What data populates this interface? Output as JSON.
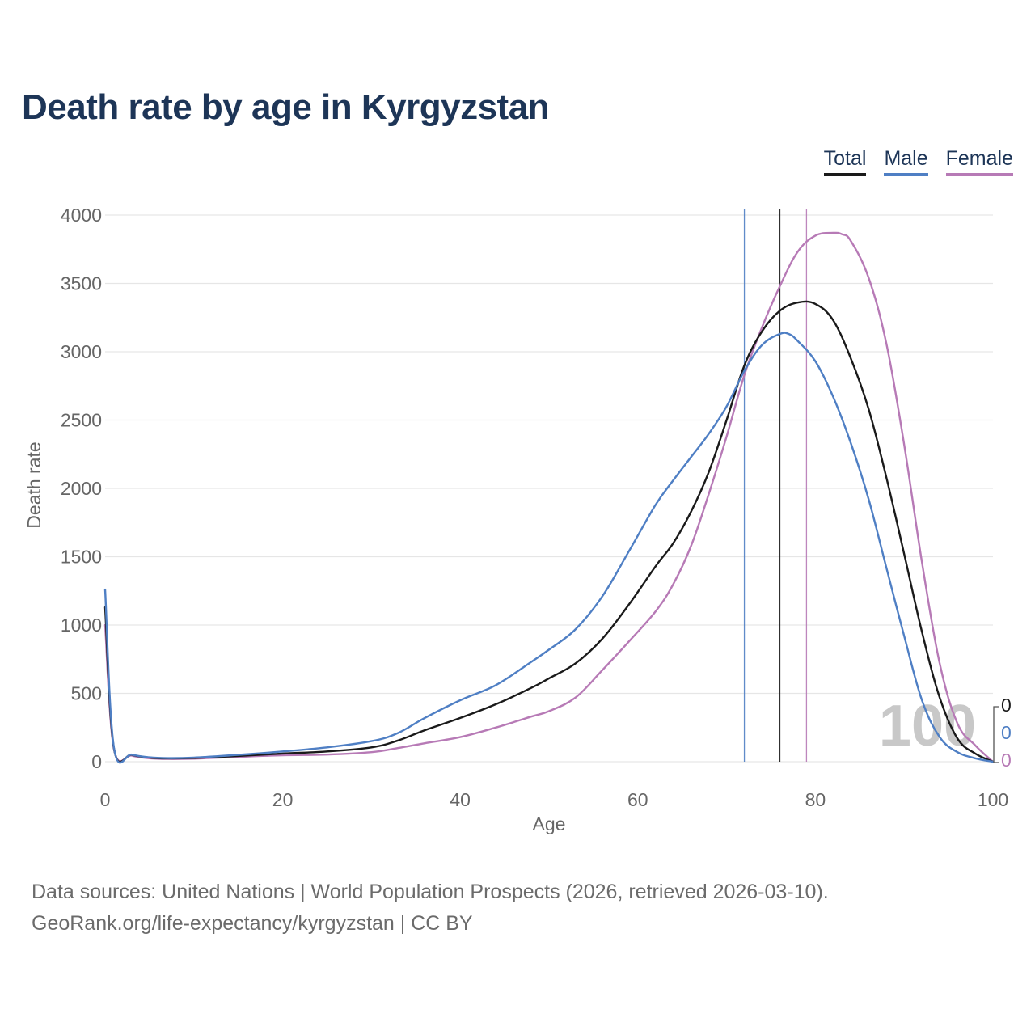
{
  "title": "Death rate by age in Kyrgyzstan",
  "legend": [
    {
      "label": "Total",
      "color": "#1a1a1a"
    },
    {
      "label": "Male",
      "color": "#4f7fc4"
    },
    {
      "label": "Female",
      "color": "#b77ab6"
    }
  ],
  "footer": {
    "line1": "Data sources: United Nations | World Population Prospects (2026, retrieved 2026-03-10).",
    "line2": "GeoRank.org/life-expectancy/kyrgyzstan | CC BY"
  },
  "chart_data": {
    "type": "line",
    "title": "Death rate by age in Kyrgyzstan",
    "xlabel": "Age",
    "ylabel": "Death rate",
    "xlim": [
      0,
      100
    ],
    "ylim": [
      0,
      4000
    ],
    "x_ticks": [
      "0",
      "20",
      "40",
      "60",
      "80",
      "100"
    ],
    "y_ticks": [
      "0",
      "500",
      "1000",
      "1500",
      "2000",
      "2500",
      "3000",
      "3500",
      "4000"
    ],
    "slider_label": "100",
    "end_values": [
      "0",
      "0",
      "0"
    ],
    "life_expectancy_markers": [
      {
        "series": "Male",
        "age": 72
      },
      {
        "series": "Total",
        "age": 76
      },
      {
        "series": "Female",
        "age": 79
      }
    ],
    "series": [
      {
        "name": "Total",
        "color": "#1a1a1a",
        "x": [
          0,
          1,
          3,
          5,
          7,
          10,
          15,
          20,
          25,
          30,
          33,
          36,
          40,
          44,
          48,
          50,
          53,
          56,
          59,
          62,
          64,
          66,
          68,
          70,
          72,
          74,
          76,
          78,
          80,
          82,
          84,
          86,
          88,
          90,
          92,
          94,
          96,
          98,
          100
        ],
        "y": [
          1130,
          95,
          50,
          30,
          24,
          27,
          42,
          60,
          75,
          105,
          155,
          230,
          320,
          420,
          540,
          610,
          720,
          900,
          1150,
          1430,
          1600,
          1830,
          2120,
          2500,
          2900,
          3150,
          3300,
          3360,
          3350,
          3230,
          2950,
          2580,
          2080,
          1520,
          950,
          470,
          170,
          60,
          0
        ]
      },
      {
        "name": "Male",
        "color": "#4f7fc4",
        "x": [
          0,
          1,
          3,
          5,
          7,
          10,
          15,
          20,
          25,
          30,
          33,
          36,
          40,
          44,
          48,
          50,
          53,
          56,
          59,
          62,
          64,
          66,
          68,
          70,
          72,
          74,
          76,
          77,
          78,
          80,
          82,
          84,
          86,
          88,
          90,
          92,
          94,
          96,
          98,
          100
        ],
        "y": [
          1260,
          100,
          52,
          32,
          26,
          30,
          50,
          75,
          105,
          150,
          210,
          320,
          450,
          560,
          730,
          820,
          970,
          1210,
          1540,
          1880,
          2060,
          2230,
          2400,
          2600,
          2860,
          3050,
          3130,
          3130,
          3080,
          2930,
          2670,
          2330,
          1920,
          1420,
          920,
          450,
          180,
          70,
          25,
          0
        ]
      },
      {
        "name": "Female",
        "color": "#b77ab6",
        "x": [
          0,
          1,
          3,
          5,
          7,
          10,
          15,
          20,
          25,
          30,
          33,
          36,
          40,
          44,
          48,
          50,
          53,
          56,
          59,
          62,
          64,
          66,
          68,
          70,
          72,
          74,
          76,
          78,
          80,
          82,
          83,
          84,
          86,
          88,
          90,
          92,
          94,
          96,
          98,
          100
        ],
        "y": [
          1000,
          90,
          45,
          25,
          20,
          22,
          35,
          47,
          52,
          70,
          100,
          135,
          180,
          250,
          330,
          370,
          470,
          670,
          880,
          1100,
          1300,
          1580,
          1960,
          2380,
          2830,
          3180,
          3480,
          3730,
          3850,
          3870,
          3860,
          3810,
          3540,
          3060,
          2320,
          1460,
          720,
          280,
          120,
          0
        ]
      }
    ]
  }
}
